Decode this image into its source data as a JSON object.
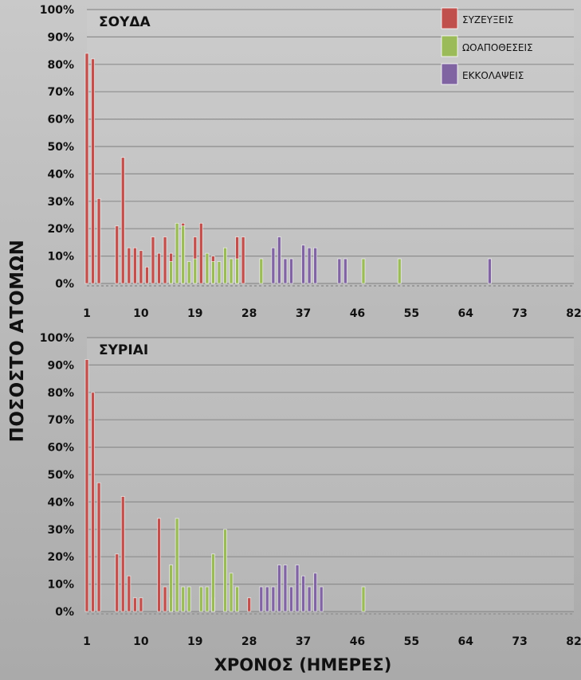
{
  "figure": {
    "ylabel": "ΠΟΣΟΣΤΟ ΑΤΟΜΩΝ",
    "xlabel": "ΧΡΟΝΟΣ (ΗΜΕΡΕΣ)"
  },
  "colors": {
    "ΣΥΖΕΥΞΕΙΣ": "#c0504d",
    "ΩΟΑΠΟΘΕΣΕΙΣ": "#9bbb59",
    "ΕΚΚΟΛΑΨΕΙΣ": "#8064a2"
  },
  "chart_data": [
    {
      "type": "bar",
      "title": "ΣΟΥΔΑ",
      "xlabel": "ΧΡΟΝΟΣ (ΗΜΕΡΕΣ)",
      "ylabel": "ΠΟΣΟΣΤΟ ΑΤΟΜΩΝ",
      "x_ticks": [
        "1",
        "10",
        "19",
        "28",
        "37",
        "46",
        "55",
        "64",
        "73",
        "82"
      ],
      "y_ticks": [
        "0%",
        "10%",
        "20%",
        "30%",
        "40%",
        "50%",
        "60%",
        "70%",
        "80%",
        "90%",
        "100%"
      ],
      "x_range": [
        1,
        82
      ],
      "ylim": [
        0,
        100
      ],
      "legend": "top-right",
      "grid": true,
      "series": [
        {
          "name": "ΣΥΖΕΥΞΕΙΣ",
          "points": [
            [
              1,
              84
            ],
            [
              2,
              82
            ],
            [
              3,
              31
            ],
            [
              6,
              21
            ],
            [
              7,
              46
            ],
            [
              8,
              13
            ],
            [
              9,
              13
            ],
            [
              10,
              12
            ],
            [
              11,
              6
            ],
            [
              12,
              17
            ],
            [
              13,
              11
            ],
            [
              14,
              17
            ],
            [
              15,
              11
            ],
            [
              17,
              22
            ],
            [
              19,
              17
            ],
            [
              20,
              22
            ],
            [
              21,
              8
            ],
            [
              22,
              10
            ],
            [
              25,
              8
            ],
            [
              26,
              17
            ],
            [
              27,
              17
            ]
          ]
        },
        {
          "name": "ΩΟΑΠΟΘΕΣΕΙΣ",
          "points": [
            [
              15,
              8
            ],
            [
              16,
              22
            ],
            [
              17,
              21
            ],
            [
              18,
              8
            ],
            [
              19,
              9
            ],
            [
              21,
              11
            ],
            [
              22,
              8
            ],
            [
              23,
              8
            ],
            [
              24,
              13
            ],
            [
              25,
              9
            ],
            [
              26,
              9
            ],
            [
              30,
              9
            ],
            [
              47,
              9
            ],
            [
              53,
              9
            ]
          ]
        },
        {
          "name": "ΕΚΚΟΛΑΨΕΙΣ",
          "points": [
            [
              32,
              13
            ],
            [
              33,
              17
            ],
            [
              34,
              9
            ],
            [
              35,
              9
            ],
            [
              37,
              14
            ],
            [
              38,
              13
            ],
            [
              39,
              13
            ],
            [
              43,
              9
            ],
            [
              44,
              9
            ],
            [
              68,
              9
            ]
          ]
        }
      ]
    },
    {
      "type": "bar",
      "title": "ΣΥΡΙΑΙ",
      "xlabel": "ΧΡΟΝΟΣ (ΗΜΕΡΕΣ)",
      "ylabel": "ΠΟΣΟΣΤΟ ΑΤΟΜΩΝ",
      "x_ticks": [
        "1",
        "10",
        "19",
        "28",
        "37",
        "46",
        "55",
        "64",
        "73",
        "82"
      ],
      "y_ticks": [
        "0%",
        "10%",
        "20%",
        "30%",
        "40%",
        "50%",
        "60%",
        "70%",
        "80%",
        "90%",
        "100%"
      ],
      "x_range": [
        1,
        82
      ],
      "ylim": [
        0,
        100
      ],
      "legend": "none",
      "grid": true,
      "series": [
        {
          "name": "ΣΥΖΕΥΞΕΙΣ",
          "points": [
            [
              1,
              92
            ],
            [
              2,
              80
            ],
            [
              3,
              47
            ],
            [
              6,
              21
            ],
            [
              7,
              42
            ],
            [
              8,
              13
            ],
            [
              9,
              5
            ],
            [
              10,
              5
            ],
            [
              13,
              34
            ],
            [
              14,
              9
            ],
            [
              15,
              5
            ],
            [
              22,
              5
            ],
            [
              28,
              5
            ]
          ]
        },
        {
          "name": "ΩΟΑΠΟΘΕΣΕΙΣ",
          "points": [
            [
              15,
              17
            ],
            [
              16,
              34
            ],
            [
              17,
              9
            ],
            [
              18,
              9
            ],
            [
              20,
              9
            ],
            [
              21,
              9
            ],
            [
              22,
              21
            ],
            [
              24,
              30
            ],
            [
              25,
              14
            ],
            [
              26,
              9
            ],
            [
              47,
              9
            ]
          ]
        },
        {
          "name": "ΕΚΚΟΛΑΨΕΙΣ",
          "points": [
            [
              30,
              9
            ],
            [
              31,
              9
            ],
            [
              32,
              9
            ],
            [
              33,
              17
            ],
            [
              34,
              17
            ],
            [
              35,
              9
            ],
            [
              36,
              17
            ],
            [
              37,
              13
            ],
            [
              38,
              9
            ],
            [
              39,
              14
            ],
            [
              40,
              9
            ]
          ]
        }
      ]
    }
  ]
}
